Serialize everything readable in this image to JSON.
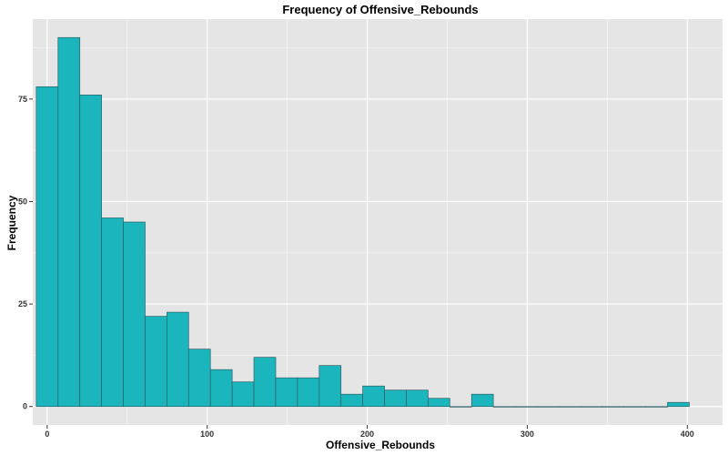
{
  "chart_data": {
    "type": "bar",
    "title": "Frequency of Offensive_Rebounds",
    "xlabel": "Offensive_Rebounds",
    "ylabel": "Frequency",
    "bin_width": 13.6,
    "bin_centers": [
      0,
      13.6,
      27.2,
      40.8,
      54.4,
      68,
      81.6,
      95.2,
      108.8,
      122.4,
      136,
      149.6,
      163.2,
      176.8,
      190.4,
      204,
      217.6,
      231.2,
      244.8,
      258.4,
      272,
      285.6,
      299.2,
      312.8,
      326.4,
      340,
      353.6,
      367.2,
      380.8,
      394.4
    ],
    "values": [
      78,
      90,
      76,
      46,
      45,
      22,
      23,
      14,
      9,
      6,
      12,
      7,
      7,
      10,
      3,
      5,
      4,
      4,
      2,
      0,
      3,
      0,
      0,
      0,
      0,
      0,
      0,
      0,
      0,
      1
    ],
    "xlim": [
      -9,
      422
    ],
    "ylim": [
      -4.5,
      94.5
    ],
    "x_ticks": [
      0,
      100,
      200,
      300,
      400
    ],
    "x_tick_labels": [
      "0",
      "100",
      "200",
      "300",
      "400"
    ],
    "y_ticks": [
      0,
      25,
      50,
      75
    ],
    "y_tick_labels": [
      "0",
      "25",
      "50",
      "75"
    ],
    "grid": true,
    "colors": {
      "bar_fill": "#1BB6BD",
      "bar_stroke": "#2E5F66",
      "panel_bg": "#E5E5E5",
      "grid_major": "#FFFFFF",
      "tick_text": "#333333"
    }
  }
}
